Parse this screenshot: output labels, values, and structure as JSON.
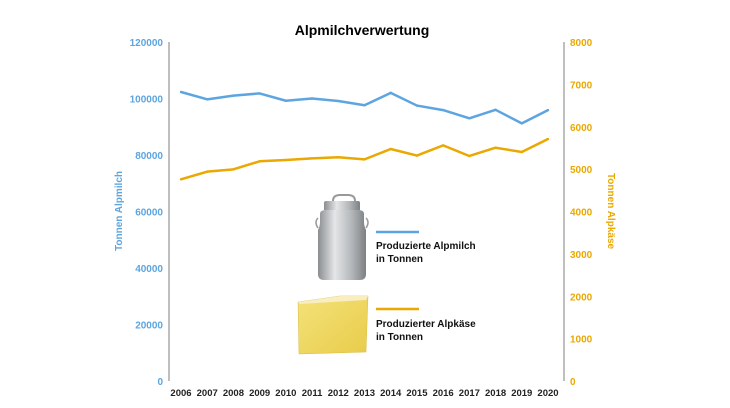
{
  "chart_data": {
    "type": "line",
    "title": "Alpmilchverwertung",
    "x": [
      "2006",
      "2007",
      "2008",
      "2009",
      "2010",
      "2011",
      "2012",
      "2013",
      "2014",
      "2015",
      "2016",
      "2017",
      "2018",
      "2019",
      "2020"
    ],
    "ylabel_left": "Tonnen Alpmilch",
    "ylabel_right": "Tonnen Alpkäse",
    "ylim_left": [
      0,
      120000
    ],
    "ylim_right": [
      0,
      8000
    ],
    "yticks_left": [
      "0",
      "20000",
      "40000",
      "60000",
      "80000",
      "100000",
      "120000"
    ],
    "yticks_right": [
      "0",
      "1000",
      "2000",
      "3000",
      "4000",
      "5000",
      "6000",
      "7000",
      "8000"
    ],
    "grid": false,
    "legend_placement": "center",
    "series": [
      {
        "name": "Produzierte Alpmilch in Tonnen",
        "line1": "Produzierte Alpmilch",
        "line2": "in Tonnen",
        "axis": "left",
        "color": "#5DA5E0",
        "values": [
          102300,
          99700,
          101000,
          101800,
          99200,
          100000,
          99100,
          97600,
          102000,
          97500,
          95900,
          93000,
          96000,
          91200,
          95900
        ]
      },
      {
        "name": "Produzierter Alpkäse in Tonnen",
        "line1": "Produzierter Alpkäse",
        "line2": "in Tonnen",
        "axis": "right",
        "color": "#EAA800",
        "values": [
          4760,
          4940,
          4995,
          5185,
          5215,
          5255,
          5280,
          5230,
          5475,
          5320,
          5560,
          5310,
          5505,
          5405,
          5710
        ]
      }
    ]
  }
}
